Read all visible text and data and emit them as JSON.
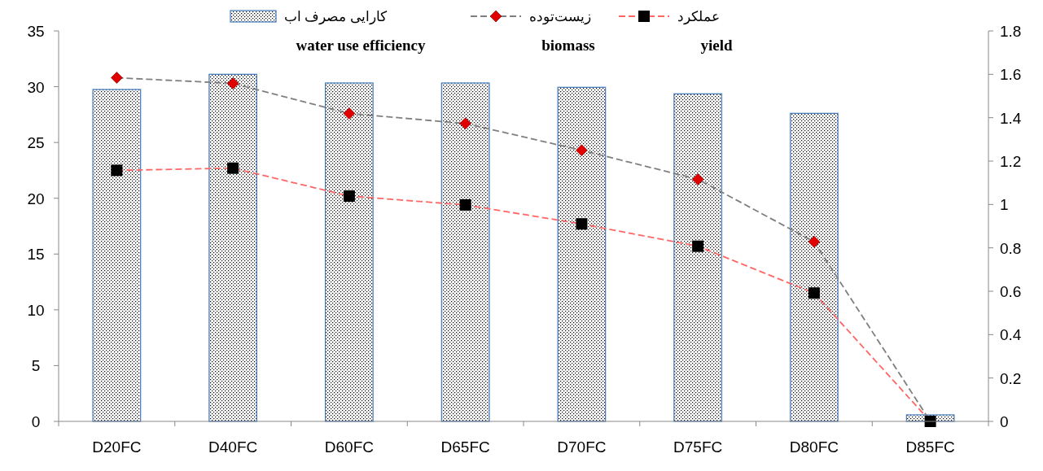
{
  "chart_data": {
    "type": "bar",
    "categories": [
      "D20FC",
      "D40FC",
      "D60FC",
      "D65FC",
      "D70FC",
      "D75FC",
      "D80FC",
      "D85FC"
    ],
    "series": [
      {
        "name": "کارایی مصرف اب\nwater use efficiency",
        "axis": "y2",
        "color": "#4f81bd",
        "values": [
          1.53,
          1.6,
          1.56,
          1.56,
          1.54,
          1.51,
          1.42,
          0.03
        ]
      },
      {
        "name": "زیست‌توده\nbiomass",
        "type": "line",
        "axis": "y",
        "color": "#7f7f7f",
        "marker": "diamond",
        "line_style": "dashed",
        "values": [
          30.8,
          30.3,
          27.6,
          26.7,
          24.3,
          21.7,
          16.1,
          0
        ]
      },
      {
        "name": "عملکرد\nyield",
        "type": "line",
        "axis": "y",
        "color": "#ff6666",
        "marker": "square",
        "line_style": "dashed",
        "values": [
          22.5,
          22.7,
          20.2,
          19.4,
          17.7,
          15.7,
          11.5,
          0
        ]
      }
    ],
    "ylim": [
      0,
      35
    ],
    "yticks": [
      0,
      5,
      10,
      15,
      20,
      25,
      30,
      35
    ],
    "y2lim": [
      0,
      1.8
    ],
    "y2ticks": [
      0,
      0.2,
      0.4,
      0.6,
      0.8,
      1,
      1.2,
      1.4,
      1.6,
      1.8
    ],
    "legend": "top",
    "grid": false
  }
}
